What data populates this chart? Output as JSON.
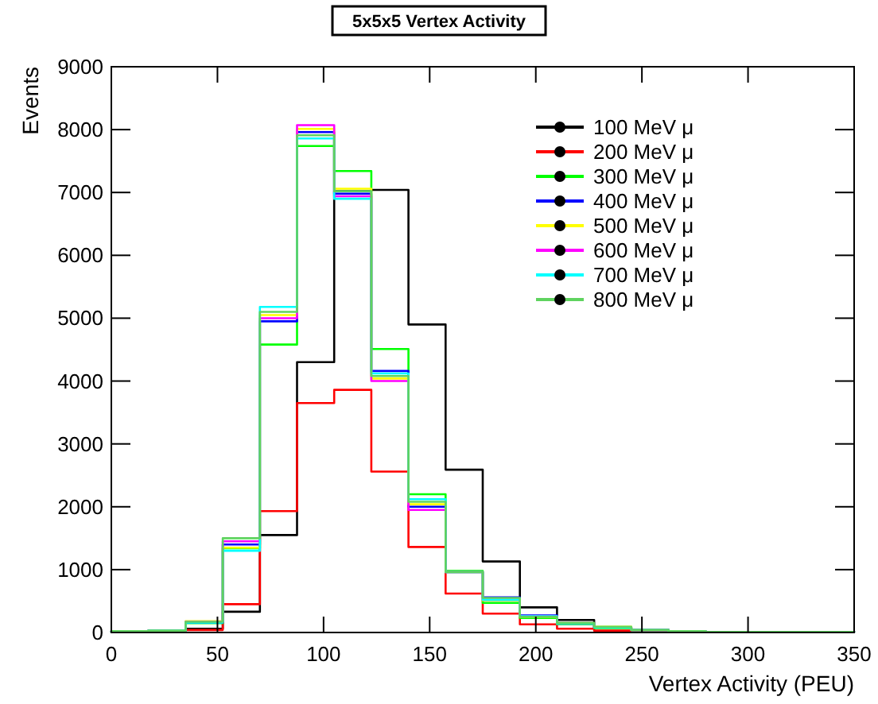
{
  "chart_data": {
    "type": "histogram",
    "title": "5x5x5 Vertex Activity",
    "xlabel": "Vertex Activity (PEU)",
    "ylabel": "Events",
    "bins": [
      0,
      17.5,
      35,
      52.5,
      70,
      87.5,
      105,
      122.5,
      140,
      157.5,
      175,
      192.5,
      210,
      227.5,
      245,
      262.5,
      280,
      297.5,
      315,
      332.5,
      350
    ],
    "series": [
      {
        "name": "100 MeV μ",
        "color": "#000000",
        "values": [
          10,
          20,
          60,
          330,
          1550,
          4300,
          7020,
          7040,
          4900,
          2590,
          1130,
          400,
          200,
          80,
          40,
          20,
          10,
          10,
          10,
          10
        ]
      },
      {
        "name": "200 MeV μ",
        "color": "#ff0000",
        "values": [
          10,
          20,
          40,
          450,
          1930,
          3650,
          3860,
          2560,
          1360,
          620,
          300,
          130,
          60,
          30,
          20,
          10,
          10,
          10,
          10,
          10
        ]
      },
      {
        "name": "300 MeV μ",
        "color": "#00ff00",
        "values": [
          20,
          30,
          150,
          1340,
          4580,
          7740,
          7340,
          4510,
          2200,
          980,
          470,
          230,
          130,
          70,
          40,
          20,
          10,
          10,
          10,
          10
        ]
      },
      {
        "name": "400 MeV μ",
        "color": "#0000ff",
        "values": [
          20,
          30,
          160,
          1400,
          4950,
          7960,
          6980,
          4160,
          2000,
          960,
          560,
          270,
          150,
          80,
          40,
          20,
          10,
          10,
          10,
          10
        ]
      },
      {
        "name": "500 MeV μ",
        "color": "#ffff00",
        "values": [
          20,
          30,
          180,
          1350,
          5050,
          8010,
          7060,
          4040,
          2040,
          960,
          510,
          250,
          150,
          90,
          40,
          20,
          10,
          10,
          10,
          10
        ]
      },
      {
        "name": "600 MeV μ",
        "color": "#ff00ff",
        "values": [
          20,
          30,
          170,
          1450,
          5000,
          8070,
          6940,
          4000,
          1950,
          960,
          520,
          260,
          140,
          80,
          40,
          20,
          10,
          10,
          10,
          10
        ]
      },
      {
        "name": "700 MeV μ",
        "color": "#00ffff",
        "values": [
          20,
          30,
          160,
          1300,
          5180,
          7860,
          6900,
          4120,
          2120,
          960,
          520,
          260,
          140,
          80,
          40,
          20,
          10,
          10,
          10,
          10
        ]
      },
      {
        "name": "800 MeV μ",
        "color": "#5fd35f",
        "values": [
          20,
          30,
          170,
          1500,
          5100,
          7910,
          7020,
          4080,
          2080,
          960,
          550,
          250,
          150,
          90,
          40,
          20,
          10,
          10,
          10,
          10
        ]
      }
    ],
    "xlim": [
      0,
      350
    ],
    "xticks": [
      0,
      50,
      100,
      150,
      200,
      250,
      300,
      350
    ],
    "ylim": [
      0,
      9000
    ],
    "yticks": [
      0,
      1000,
      2000,
      3000,
      4000,
      5000,
      6000,
      7000,
      8000,
      9000
    ],
    "grid": false,
    "legend": "top right"
  }
}
